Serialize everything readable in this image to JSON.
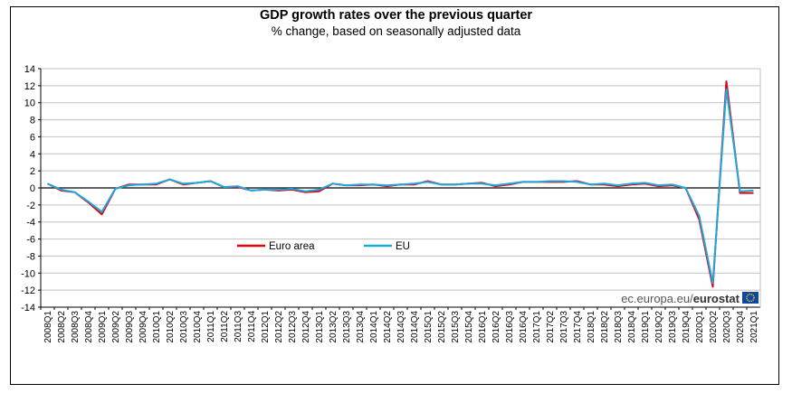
{
  "chart_data": {
    "type": "line",
    "title": "GDP growth rates over the previous quarter",
    "subtitle": "% change, based on seasonally adjusted data",
    "ylim": [
      -14,
      14
    ],
    "yticks": [
      14,
      12,
      10,
      8,
      6,
      4,
      2,
      0,
      -2,
      -4,
      -6,
      -8,
      -10,
      -12,
      -14
    ],
    "grid": true,
    "legend_position": "lower-left",
    "categories": [
      "2008Q1",
      "2008Q2",
      "2008Q3",
      "2008Q4",
      "2009Q1",
      "2009Q2",
      "2009Q3",
      "2009Q4",
      "2010Q1",
      "2010Q2",
      "2010Q3",
      "2010Q4",
      "2011Q1",
      "2011Q2",
      "2011Q3",
      "2011Q4",
      "2012Q1",
      "2012Q2",
      "2012Q3",
      "2012Q4",
      "2013Q1",
      "2013Q2",
      "2013Q3",
      "2013Q4",
      "2014Q1",
      "2014Q2",
      "2014Q3",
      "2014Q4",
      "2015Q1",
      "2015Q2",
      "2015Q3",
      "2015Q4",
      "2016Q1",
      "2016Q2",
      "2016Q3",
      "2016Q4",
      "2017Q1",
      "2017Q2",
      "2017Q3",
      "2017Q4",
      "2018Q1",
      "2018Q2",
      "2018Q3",
      "2018Q4",
      "2019Q1",
      "2019Q2",
      "2019Q3",
      "2019Q4",
      "2020Q1",
      "2020Q2",
      "2020Q3",
      "2020Q4",
      "2021Q1"
    ],
    "series": [
      {
        "name": "Euro area",
        "color": "#e3000f",
        "values": [
          0.5,
          -0.3,
          -0.5,
          -1.7,
          -3.1,
          -0.1,
          0.4,
          0.4,
          0.4,
          1.0,
          0.4,
          0.6,
          0.8,
          0.1,
          0.1,
          -0.3,
          -0.2,
          -0.3,
          -0.2,
          -0.5,
          -0.4,
          0.5,
          0.3,
          0.3,
          0.4,
          0.2,
          0.4,
          0.4,
          0.8,
          0.4,
          0.4,
          0.5,
          0.6,
          0.2,
          0.4,
          0.7,
          0.7,
          0.7,
          0.7,
          0.8,
          0.4,
          0.4,
          0.2,
          0.4,
          0.5,
          0.2,
          0.3,
          0.0,
          -3.7,
          -11.6,
          12.5,
          -0.6,
          -0.6
        ]
      },
      {
        "name": "EU",
        "color": "#1ea9dc",
        "values": [
          0.5,
          -0.2,
          -0.5,
          -1.6,
          -2.8,
          -0.1,
          0.3,
          0.4,
          0.5,
          1.0,
          0.5,
          0.6,
          0.8,
          0.1,
          0.2,
          -0.3,
          -0.2,
          -0.2,
          -0.1,
          -0.4,
          -0.2,
          0.5,
          0.3,
          0.4,
          0.4,
          0.3,
          0.4,
          0.5,
          0.7,
          0.4,
          0.4,
          0.5,
          0.5,
          0.3,
          0.5,
          0.7,
          0.7,
          0.8,
          0.8,
          0.7,
          0.4,
          0.5,
          0.3,
          0.5,
          0.6,
          0.3,
          0.4,
          0.0,
          -3.3,
          -11.2,
          11.6,
          -0.4,
          -0.3
        ]
      }
    ]
  },
  "legend": {
    "euro_area": "Euro area",
    "eu": "EU"
  },
  "source": {
    "prefix": "ec.europa.eu/",
    "brand": "eurostat"
  },
  "colors": {
    "euro_area": "#e3000f",
    "eu": "#1ea9dc",
    "eu_flag": "#0e47a1",
    "eu_stars": "#ffd200"
  }
}
